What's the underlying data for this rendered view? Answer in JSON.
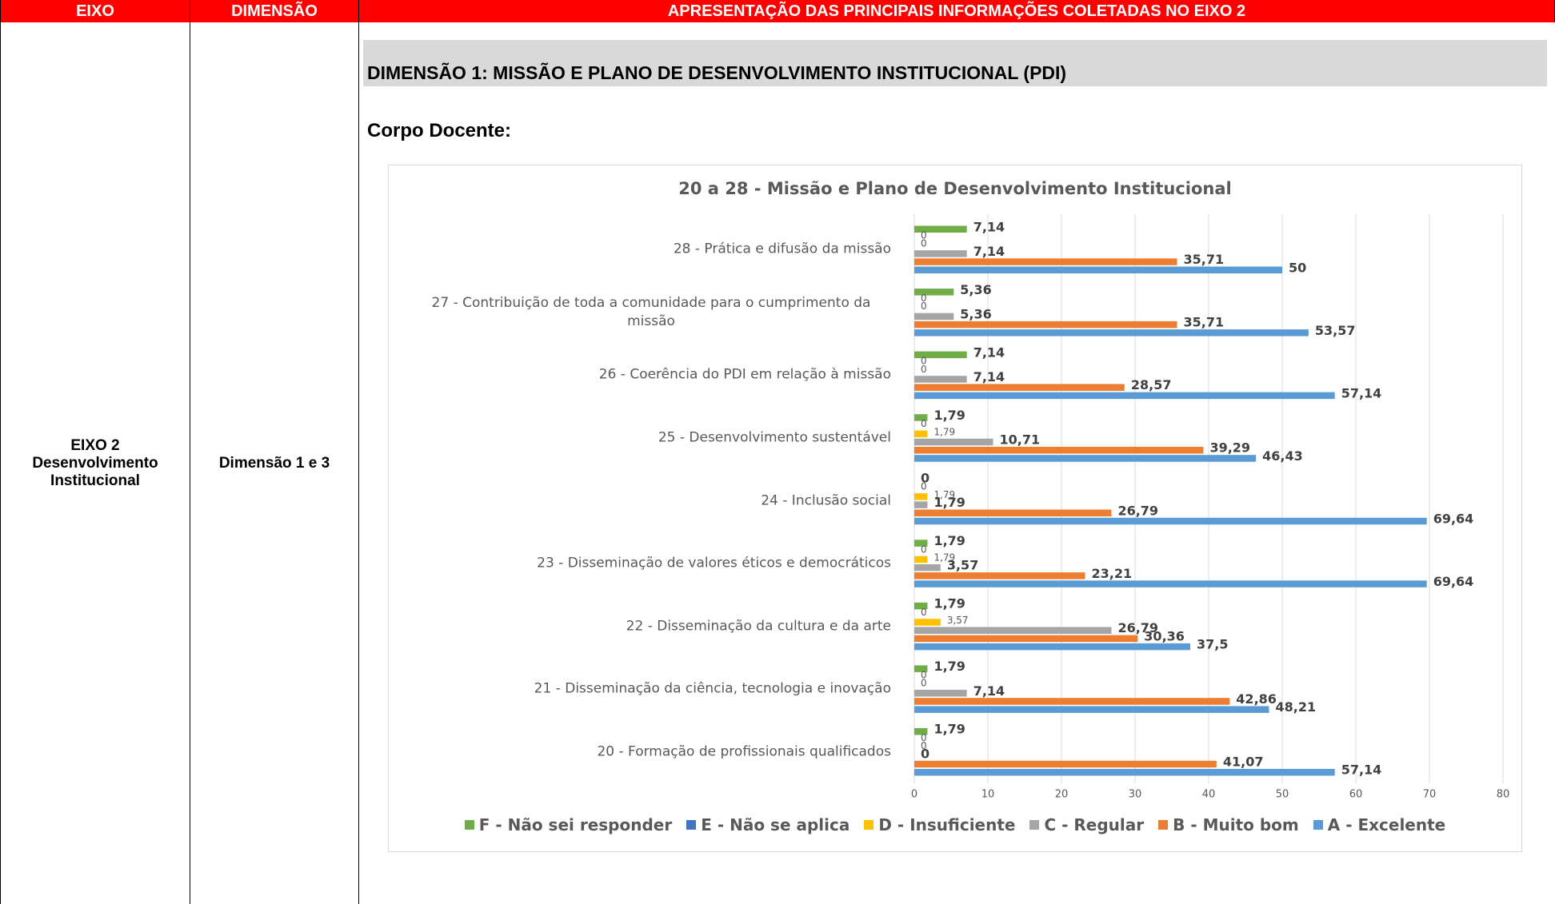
{
  "table": {
    "headers": [
      "EIXO",
      "DIMENSÃO",
      "APRESENTAÇÃO DAS PRINCIPAIS INFORMAÇÕES COLETADAS NO EIXO 2"
    ],
    "eixo": "EIXO 2 Desenvolvimento Institucional",
    "dimensao": "Dimensão 1 e 3"
  },
  "section_title": "DIMENSÃO 1: MISSÃO E PLANO DE DESENVOLVIMENTO INSTITUCIONAL (PDI)",
  "subtitle": "Corpo Docente:",
  "chart_data": {
    "type": "bar",
    "orientation": "horizontal",
    "title": "20 a 28 - Missão e Plano de Desenvolvimento Institucional",
    "categories": [
      "28 - Prática e difusão da missão",
      "27 - Contribuição de toda a comunidade para o cumprimento da missão",
      "26 - Coerência do PDI em relação à missão",
      "25 - Desenvolvimento sustentável",
      "24 - Inclusão social",
      "23 - Disseminação de valores éticos e democráticos",
      "22 - Disseminação da cultura e da arte",
      "21 - Disseminação da ciência, tecnologia e inovação",
      "20 - Formação de profissionais qualificados"
    ],
    "series": [
      {
        "name": "F - Não sei responder",
        "color": "#70ad47",
        "values": [
          7.14,
          5.36,
          7.14,
          1.79,
          0,
          1.79,
          1.79,
          1.79,
          1.79
        ],
        "value_labels": [
          "7,14",
          "5,36",
          "7,14",
          "1,79",
          "0",
          "1,79",
          "1,79",
          "1,79",
          "1,79"
        ]
      },
      {
        "name": "E - Não se aplica",
        "color": "#4472c4",
        "values": [
          0,
          0,
          0,
          0,
          0,
          0,
          0,
          0,
          0
        ],
        "value_labels": [
          "0",
          "0",
          "0",
          "0",
          "0",
          "0",
          "0",
          "0",
          "0"
        ]
      },
      {
        "name": "D - Insuficiente",
        "color": "#ffc000",
        "values": [
          0,
          0,
          0,
          1.79,
          1.79,
          1.79,
          3.57,
          0,
          0
        ],
        "value_labels": [
          "0",
          "0",
          "0",
          "1,79",
          "1,79",
          "1,79",
          "3,57",
          "0",
          "0"
        ]
      },
      {
        "name": "C - Regular",
        "color": "#a5a5a5",
        "values": [
          7.14,
          5.36,
          7.14,
          10.71,
          1.79,
          3.57,
          26.79,
          7.14,
          0
        ],
        "value_labels": [
          "7,14",
          "5,36",
          "7,14",
          "10,71",
          "1,79",
          "3,57",
          "26,79",
          "7,14",
          "0"
        ]
      },
      {
        "name": "B - Muito bom",
        "color": "#ed7d31",
        "values": [
          35.71,
          35.71,
          28.57,
          39.29,
          26.79,
          23.21,
          30.36,
          42.86,
          41.07
        ],
        "value_labels": [
          "35,71",
          "35,71",
          "28,57",
          "39,29",
          "26,79",
          "23,21",
          "30,36",
          "42,86",
          "41,07"
        ]
      },
      {
        "name": "A - Excelente",
        "color": "#5b9bd5",
        "values": [
          50,
          53.57,
          57.14,
          46.43,
          69.64,
          69.64,
          37.5,
          48.21,
          57.14
        ],
        "value_labels": [
          "50",
          "53,57",
          "57,14",
          "46,43",
          "69,64",
          "69,64",
          "37,5",
          "48,21",
          "57,14"
        ]
      }
    ],
    "xlim": [
      0,
      80
    ],
    "xticks": [
      0,
      10,
      20,
      30,
      40,
      50,
      60,
      70,
      80
    ],
    "grid": true,
    "legend": "bottom"
  }
}
